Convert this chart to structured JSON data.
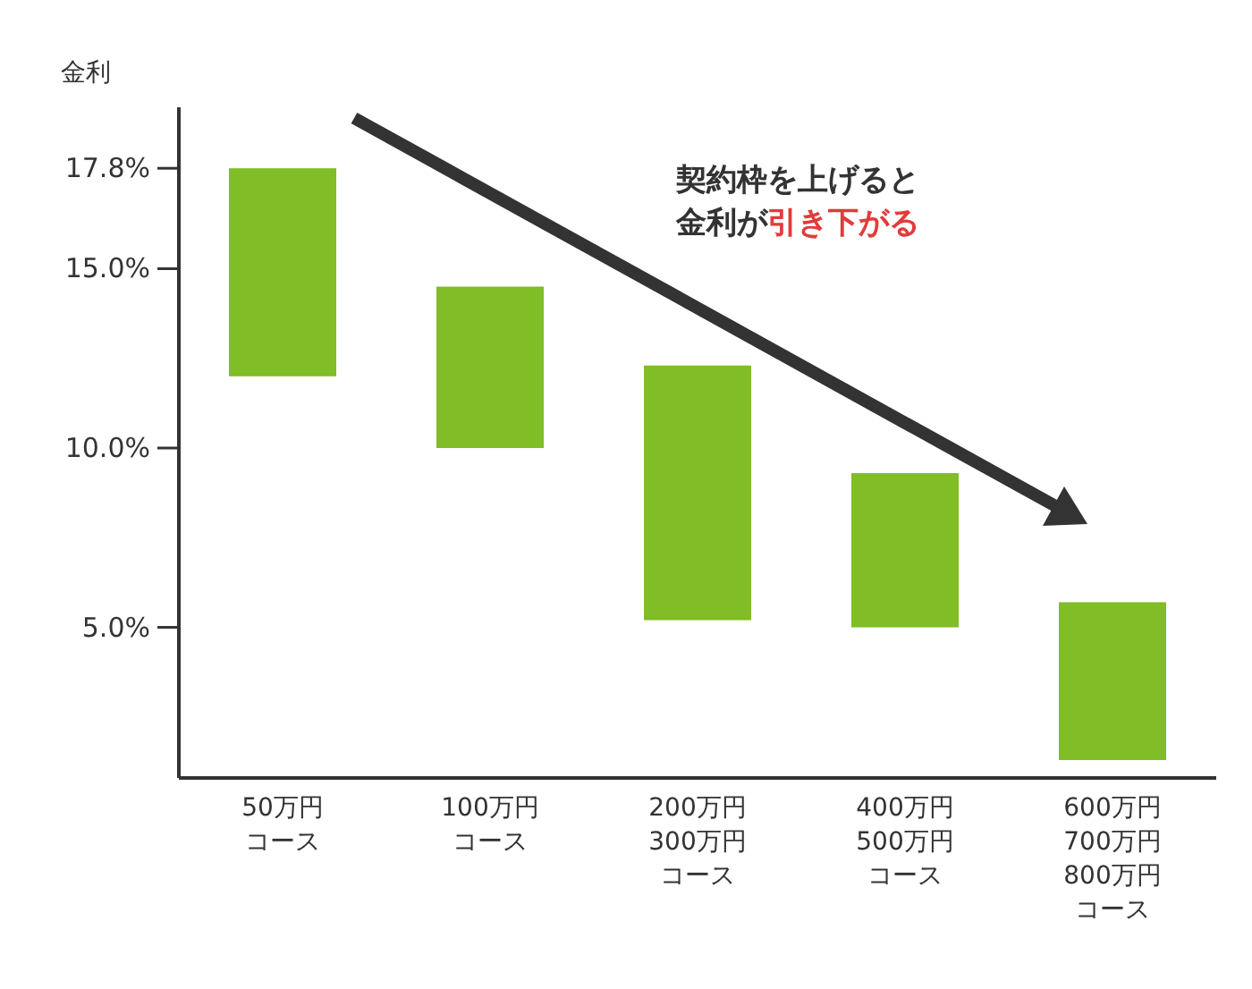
{
  "chart_data": {
    "type": "bar",
    "ylabel": "金利",
    "categories": [
      "50万円コース",
      "100万円コース",
      "200万円300万円コース",
      "400万円500万円コース",
      "600万円700万円800万円コース"
    ],
    "base": [
      12.0,
      10.0,
      5.2,
      5.0,
      1.3
    ],
    "values": [
      5.8,
      4.5,
      7.1,
      4.3,
      4.4
    ],
    "color": "#80bd26",
    "ylim": [
      0.8,
      19.5
    ],
    "yticks": [
      {
        "value": 5,
        "label": "5.0%"
      },
      {
        "value": 10,
        "label": "10.0%"
      },
      {
        "value": 15,
        "label": "15.0%"
      },
      {
        "value": 17.8,
        "label": "17.8%"
      }
    ],
    "grid": false,
    "annotations": [
      "契約枠を上げると",
      "金利が引き下がる"
    ]
  }
}
